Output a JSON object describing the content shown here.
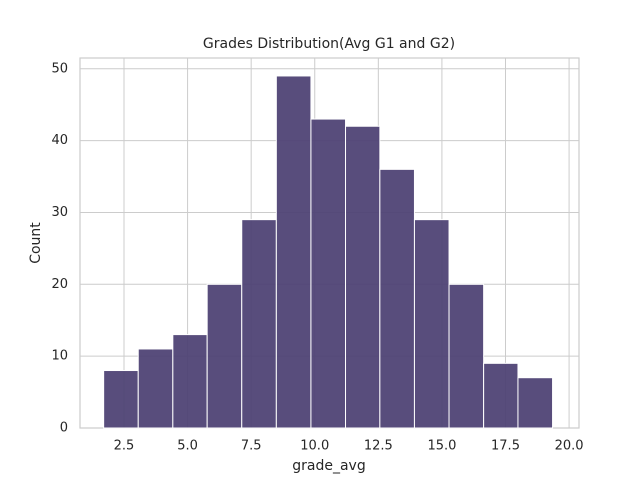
{
  "chart_data": {
    "type": "histogram",
    "title": "Grades Distribution(Avg G1 and G2)",
    "x_label": "grade_avg",
    "y_label": "Count",
    "bins": [
      1.7,
      3.06,
      4.42,
      5.77,
      7.13,
      8.49,
      9.85,
      11.21,
      12.56,
      13.92,
      15.28,
      16.64,
      17.99,
      19.35
    ],
    "values": [
      8,
      11,
      13,
      20,
      29,
      49,
      43,
      42,
      36,
      29,
      20,
      9,
      7
    ],
    "color": "#4b3f72",
    "xlim": [
      0.77,
      20.39
    ],
    "xticks": [
      2.5,
      {
        "value": 5,
        "label": "5.0"
      },
      7.5,
      {
        "value": 10,
        "label": "10.0"
      },
      12.5,
      {
        "value": 15,
        "label": "15.0"
      },
      17.5,
      {
        "value": 20,
        "label": "20.0"
      }
    ],
    "ylim": [
      0,
      51.5
    ],
    "yticks": [
      0,
      10,
      20,
      30,
      40,
      50
    ],
    "grid": true
  }
}
